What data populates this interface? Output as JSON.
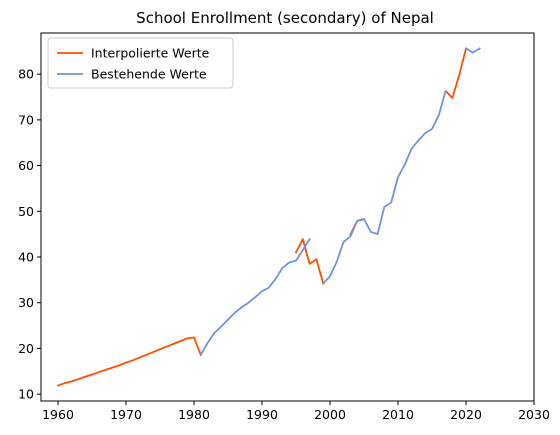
{
  "chart_data": {
    "type": "line",
    "title": "School Enrollment (secondary) of Nepal",
    "xlabel": "",
    "ylabel": "",
    "xlim": [
      1957.5,
      2030
    ],
    "ylim": [
      8.5,
      89
    ],
    "x_ticks": [
      1960,
      1970,
      1980,
      1990,
      2000,
      2010,
      2020,
      2030
    ],
    "y_ticks": [
      10,
      20,
      30,
      40,
      50,
      60,
      70,
      80
    ],
    "grid": false,
    "legend_position": "top-left",
    "series": [
      {
        "name": "Interpolierte Werte",
        "color": "#ff4f00",
        "points": [
          [
            1960,
            11.9
          ],
          [
            1961,
            12.4
          ],
          [
            1962,
            12.8
          ],
          [
            1963,
            13.3
          ],
          [
            1964,
            13.8
          ],
          [
            1965,
            14.3
          ],
          [
            1966,
            14.8
          ],
          [
            1967,
            15.3
          ],
          [
            1968,
            15.8
          ],
          [
            1969,
            16.3
          ],
          [
            1970,
            16.9
          ],
          [
            1971,
            17.4
          ],
          [
            1972,
            18.0
          ],
          [
            1973,
            18.6
          ],
          [
            1974,
            19.2
          ],
          [
            1975,
            19.8
          ],
          [
            1976,
            20.4
          ],
          [
            1977,
            21.0
          ],
          [
            1978,
            21.6
          ],
          [
            1979,
            22.2
          ],
          [
            1980,
            22.4
          ],
          [
            1981,
            18.6
          ],
          [
            1995,
            41.0
          ],
          [
            1996,
            43.9
          ],
          [
            1997,
            38.5
          ],
          [
            1998,
            39.5
          ],
          [
            1999,
            34.2
          ],
          [
            2003,
            44.9
          ],
          [
            2004,
            47.9
          ],
          [
            2005,
            48.3
          ],
          [
            2017,
            76.3
          ],
          [
            2018,
            74.8
          ],
          [
            2019,
            79.8
          ],
          [
            2020,
            85.6
          ]
        ]
      },
      {
        "name": "Bestehende Werte",
        "color": "#6f93e0",
        "points": [
          [
            1981,
            18.6
          ],
          [
            1982,
            21.2
          ],
          [
            1983,
            23.4
          ],
          [
            1984,
            24.8
          ],
          [
            1985,
            26.3
          ],
          [
            1986,
            27.8
          ],
          [
            1987,
            29.0
          ],
          [
            1988,
            30.0
          ],
          [
            1989,
            31.2
          ],
          [
            1990,
            32.5
          ],
          [
            1991,
            33.3
          ],
          [
            1992,
            35.2
          ],
          [
            1993,
            37.6
          ],
          [
            1994,
            38.8
          ],
          [
            1995,
            39.2
          ],
          [
            1996,
            41.5
          ],
          [
            1997,
            43.9
          ],
          [
            1999,
            34.2
          ],
          [
            2000,
            35.8
          ],
          [
            2001,
            39.0
          ],
          [
            2002,
            43.3
          ],
          [
            2003,
            44.5
          ],
          [
            2004,
            47.9
          ],
          [
            2005,
            48.3
          ],
          [
            2006,
            45.5
          ],
          [
            2007,
            45.0
          ],
          [
            2008,
            51.0
          ],
          [
            2009,
            51.9
          ],
          [
            2010,
            57.5
          ],
          [
            2011,
            60.2
          ],
          [
            2012,
            63.7
          ],
          [
            2013,
            65.5
          ],
          [
            2014,
            67.1
          ],
          [
            2015,
            68.0
          ],
          [
            2016,
            71.0
          ],
          [
            2017,
            76.3
          ],
          [
            2020,
            85.6
          ],
          [
            2021,
            84.7
          ],
          [
            2022,
            85.6
          ]
        ]
      }
    ]
  }
}
